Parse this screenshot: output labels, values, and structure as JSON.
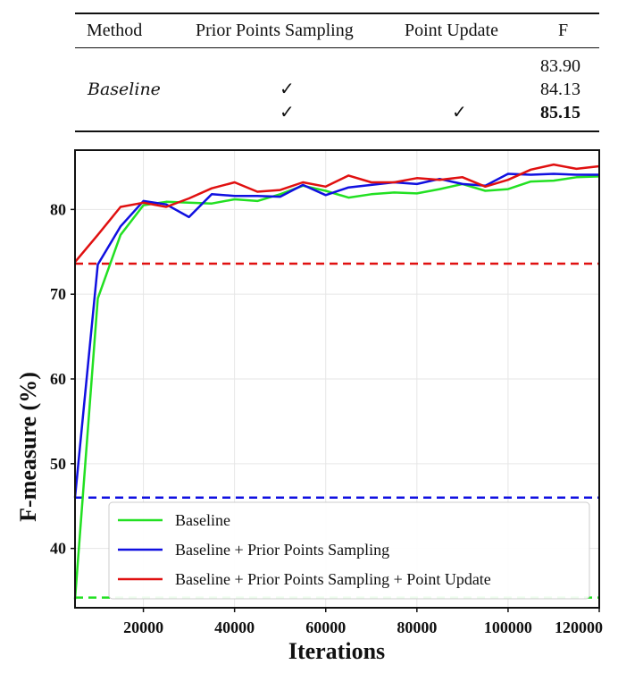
{
  "table": {
    "headers": [
      "Method",
      "Prior Points Sampling",
      "Point Update",
      "F"
    ],
    "rows": [
      {
        "method": "",
        "prior": "",
        "update": "",
        "f": "83.90"
      },
      {
        "method": "Baseline",
        "prior": "✓",
        "update": "",
        "f": "84.13"
      },
      {
        "method": "",
        "prior": "✓",
        "update": "✓",
        "f": "85.15",
        "bold": true
      }
    ]
  },
  "chart_data": {
    "type": "line",
    "xlabel": "Iterations",
    "ylabel": "F-measure (%)",
    "xlim": [
      5000,
      120000
    ],
    "ylim": [
      33,
      87
    ],
    "xticks": [
      20000,
      40000,
      60000,
      80000,
      100000,
      120000
    ],
    "xtick_labels": [
      "20000",
      "40000",
      "60000",
      "80000",
      "100000",
      "120000"
    ],
    "yticks": [
      40,
      50,
      60,
      70,
      80
    ],
    "ytick_labels": [
      "40",
      "50",
      "60",
      "70",
      "80"
    ],
    "grid": true,
    "legend_position": "lower-right",
    "x": [
      5000,
      10000,
      15000,
      20000,
      25000,
      30000,
      35000,
      40000,
      45000,
      50000,
      55000,
      60000,
      65000,
      70000,
      75000,
      80000,
      85000,
      90000,
      95000,
      100000,
      105000,
      110000,
      115000,
      120000
    ],
    "series": [
      {
        "name": "Baseline",
        "color": "#22e022",
        "values": [
          34.0,
          69.5,
          77.0,
          80.5,
          80.9,
          80.8,
          80.7,
          81.2,
          81.0,
          81.8,
          82.8,
          82.2,
          81.4,
          81.8,
          82.0,
          81.9,
          82.4,
          83.0,
          82.2,
          82.4,
          83.3,
          83.4,
          83.8,
          83.9
        ]
      },
      {
        "name": "Baseline + Prior Points Sampling",
        "color": "#1010e0",
        "values": [
          46.0,
          73.5,
          78.0,
          81.0,
          80.6,
          79.1,
          81.8,
          81.6,
          81.6,
          81.5,
          82.9,
          81.7,
          82.6,
          82.9,
          83.2,
          83.0,
          83.6,
          83.0,
          82.8,
          84.2,
          84.1,
          84.2,
          84.1,
          84.1
        ]
      },
      {
        "name": "Baseline + Prior Points Sampling + Point Update",
        "color": "#e01010",
        "values": [
          73.8,
          77.0,
          80.3,
          80.8,
          80.3,
          81.3,
          82.5,
          83.2,
          82.1,
          82.3,
          83.2,
          82.7,
          84.0,
          83.2,
          83.2,
          83.7,
          83.5,
          83.8,
          82.7,
          83.5,
          84.7,
          85.3,
          84.8,
          85.1
        ]
      }
    ],
    "reference_lines": [
      {
        "y": 73.6,
        "color": "#e01010",
        "style": "dashed"
      },
      {
        "y": 46.0,
        "color": "#1010e0",
        "style": "dashed"
      },
      {
        "y": 34.2,
        "color": "#22e022",
        "style": "dashed"
      }
    ]
  }
}
